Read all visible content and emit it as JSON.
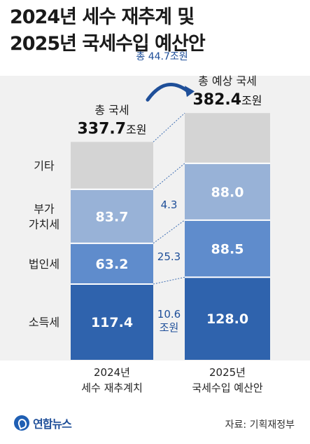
{
  "title_lines": [
    "2024년 세수 재추계 및",
    "2025년 국세수입 예산안"
  ],
  "source": "자료: 기획재정부",
  "logo": "연합뉴스",
  "colors": {
    "etc": "#d4d4d4",
    "vat": "#98b2d7",
    "corp": "#5f8ccc",
    "income": "#2f63ad",
    "arrow": "#1f4f99",
    "diff_text": "#1f4f99"
  },
  "chart_data": {
    "type": "bar",
    "stacked": true,
    "categories": [
      "2024년 세수 재추계치",
      "2025년 국세수입 예산안"
    ],
    "category_labels": [
      [
        "2024년",
        "세수 재추계치"
      ],
      [
        "2025년",
        "국세수입 예산안"
      ]
    ],
    "unit": "조원",
    "series": [
      {
        "name": "소득세",
        "values": [
          117.4,
          128.0
        ],
        "labels": [
          "117.4",
          "128.0"
        ]
      },
      {
        "name": "법인세",
        "values": [
          63.2,
          88.5
        ],
        "labels": [
          "63.2",
          "88.5"
        ]
      },
      {
        "name": "부가가치세",
        "label_lines": [
          "부가",
          "가치세"
        ],
        "values": [
          83.7,
          88.0
        ],
        "labels": [
          "83.7",
          "88.0"
        ]
      },
      {
        "name": "기타",
        "values": [
          73.4,
          77.9
        ],
        "labels": [
          "",
          ""
        ]
      }
    ],
    "totals": [
      {
        "caption": "총 국세",
        "value": "337.7",
        "unit": "조원"
      },
      {
        "caption": "총 예상 국세",
        "value": "382.4",
        "unit": "조원"
      }
    ],
    "differences": [
      {
        "series": "소득세",
        "lines": [
          "10.6",
          "조원"
        ]
      },
      {
        "series": "법인세",
        "lines": [
          "25.3"
        ]
      },
      {
        "series": "부가가치세",
        "lines": [
          "4.3"
        ]
      }
    ],
    "total_increase": "총 44.7조원"
  }
}
